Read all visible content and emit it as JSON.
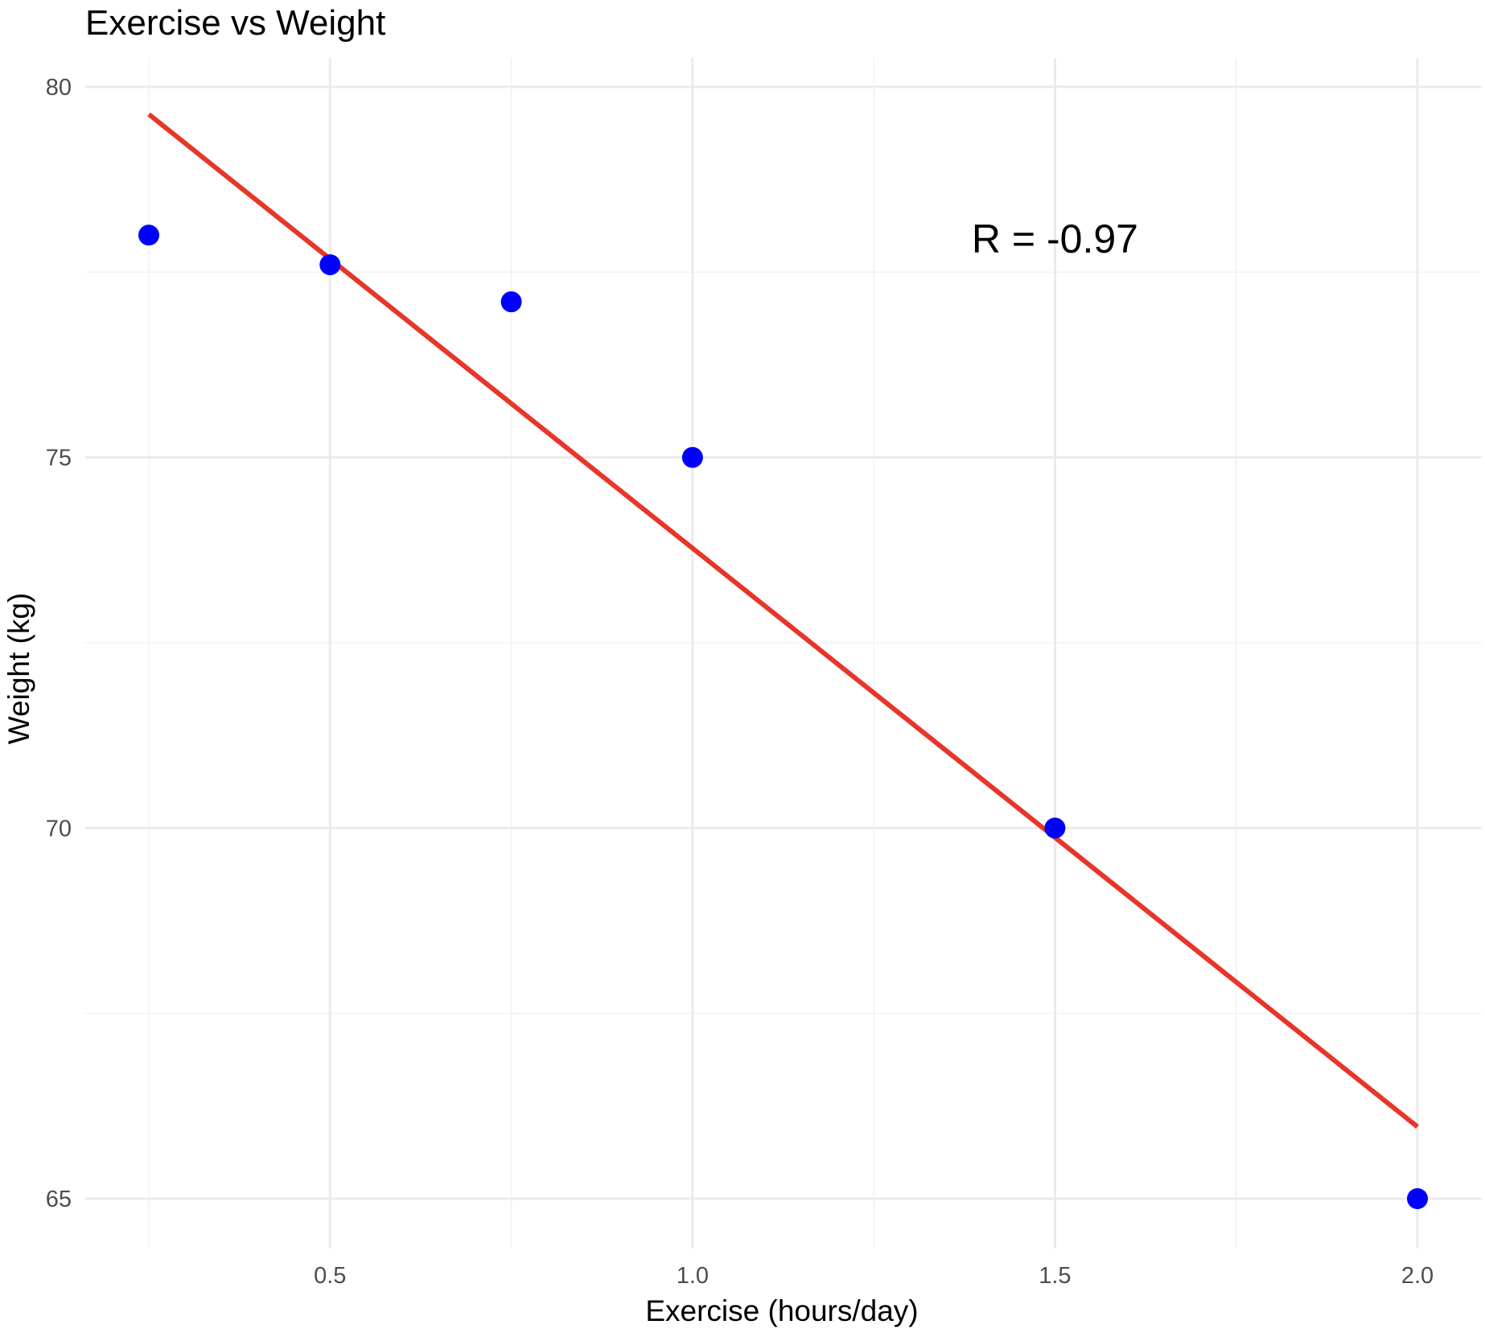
{
  "chart_data": {
    "type": "scatter",
    "title": "Exercise vs Weight",
    "xlabel": "Exercise (hours/day)",
    "ylabel": "Weight (kg)",
    "xlim": [
      0.16,
      2.07
    ],
    "ylim": [
      63.6,
      80.35
    ],
    "x_ticks": [
      0.5,
      1.0,
      1.5,
      2.0
    ],
    "x_tick_labels": [
      "0.5",
      "1.0",
      "1.5",
      "2.0"
    ],
    "y_ticks": [
      65,
      70,
      75,
      80
    ],
    "y_tick_labels": [
      "65",
      "70",
      "75",
      "80"
    ],
    "x_minor_ticks": [
      0.25,
      0.75,
      1.25,
      1.75
    ],
    "y_minor_ticks": [
      67.5,
      72.5,
      77.5
    ],
    "grid": true,
    "points": [
      {
        "x": 0.25,
        "y": 78.0
      },
      {
        "x": 0.5,
        "y": 77.6
      },
      {
        "x": 0.75,
        "y": 77.1
      },
      {
        "x": 1.0,
        "y": 75.0
      },
      {
        "x": 1.5,
        "y": 70.0
      },
      {
        "x": 2.0,
        "y": 65.0
      }
    ],
    "trendline": {
      "x": [
        0.25,
        2.0
      ],
      "y": [
        79.63,
        65.97
      ]
    },
    "annotations": [
      {
        "text": "R = -0.97",
        "x": 1.5,
        "y": 77.95
      }
    ],
    "colors": {
      "points": "#0000ff",
      "trendline": "#e8352a",
      "grid_major": "#ebebeb",
      "grid_minor": "#f2f2f2",
      "tick_text": "#4d4d4d",
      "background": "#ffffff"
    }
  }
}
